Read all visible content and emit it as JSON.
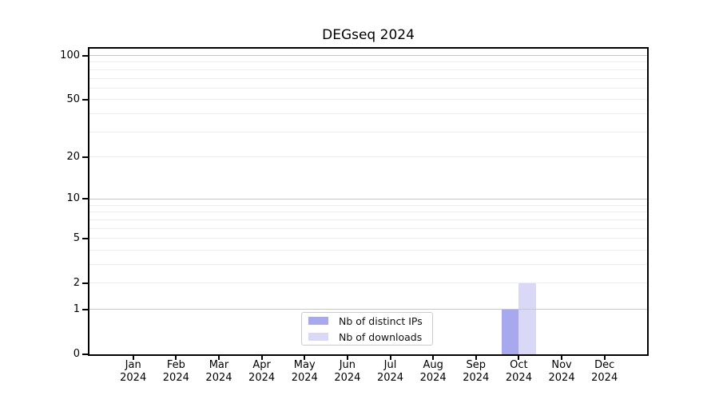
{
  "title": "DEGseq 2024",
  "chart_data": {
    "type": "bar",
    "title": "DEGseq 2024",
    "year_label": "2024",
    "categories": [
      "Jan",
      "Feb",
      "Mar",
      "Apr",
      "May",
      "Jun",
      "Jul",
      "Aug",
      "Sep",
      "Oct",
      "Nov",
      "Dec"
    ],
    "series": [
      {
        "key": "distinct-ips",
        "name": "Nb of distinct IPs",
        "color": "#a8a8ef",
        "values": [
          0,
          0,
          0,
          0,
          0,
          0,
          0,
          0,
          0,
          1,
          0,
          0
        ]
      },
      {
        "key": "downloads",
        "name": "Nb of downloads",
        "color": "#d9d9f7",
        "values": [
          0,
          0,
          0,
          0,
          0,
          0,
          0,
          0,
          0,
          2,
          0,
          0
        ]
      }
    ],
    "y_axis": {
      "scale": "log10(1+y)",
      "range": [
        0,
        100
      ],
      "tick_labels": [
        0,
        1,
        2,
        5,
        10,
        20,
        50,
        100
      ],
      "major_gridlines": [
        1,
        10,
        100
      ],
      "minor_gridlines": [
        2,
        3,
        4,
        5,
        6,
        7,
        8,
        9,
        20,
        30,
        40,
        50,
        60,
        70,
        80,
        90
      ]
    },
    "legend_position": "bottom-center",
    "grid": true
  },
  "legend": {
    "items": [
      {
        "label": "Nb of distinct IPs",
        "color": "#a8a8ef"
      },
      {
        "label": "Nb of downloads",
        "color": "#d9d9f7"
      }
    ]
  },
  "colors": {
    "background": "#ffffff",
    "axis_frame": "#000000",
    "major_gridline": "#c7c7c7",
    "minor_gridline": "#ededed",
    "bar_distinct_ips": "#a8a8ef",
    "bar_downloads": "#d9d9f7",
    "legend_border": "#cbcbcb",
    "text": "#000000"
  }
}
